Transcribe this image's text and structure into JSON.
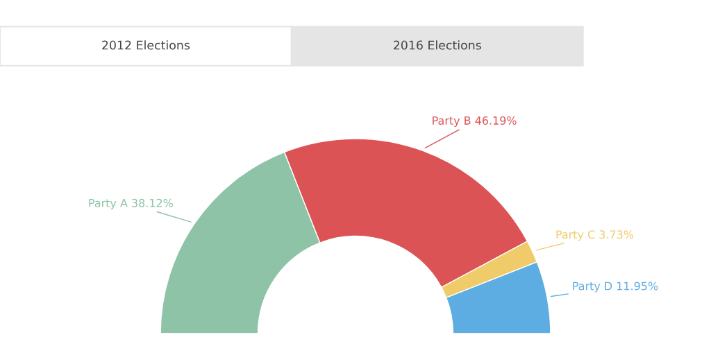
{
  "chart_data": {
    "type": "donut",
    "categories": [
      "Party A",
      "Party B",
      "Party C",
      "Party D"
    ],
    "values": [
      38.12,
      46.19,
      3.73,
      11.95
    ],
    "value_labels": [
      "38.12%",
      "46.19%",
      "3.73%",
      "11.95%"
    ],
    "colors": [
      "#8ec3a7",
      "#dc5356",
      "#f0cb69",
      "#5dade2"
    ],
    "annotations": [
      "2012 Elections",
      "2016 Elections"
    ]
  }
}
